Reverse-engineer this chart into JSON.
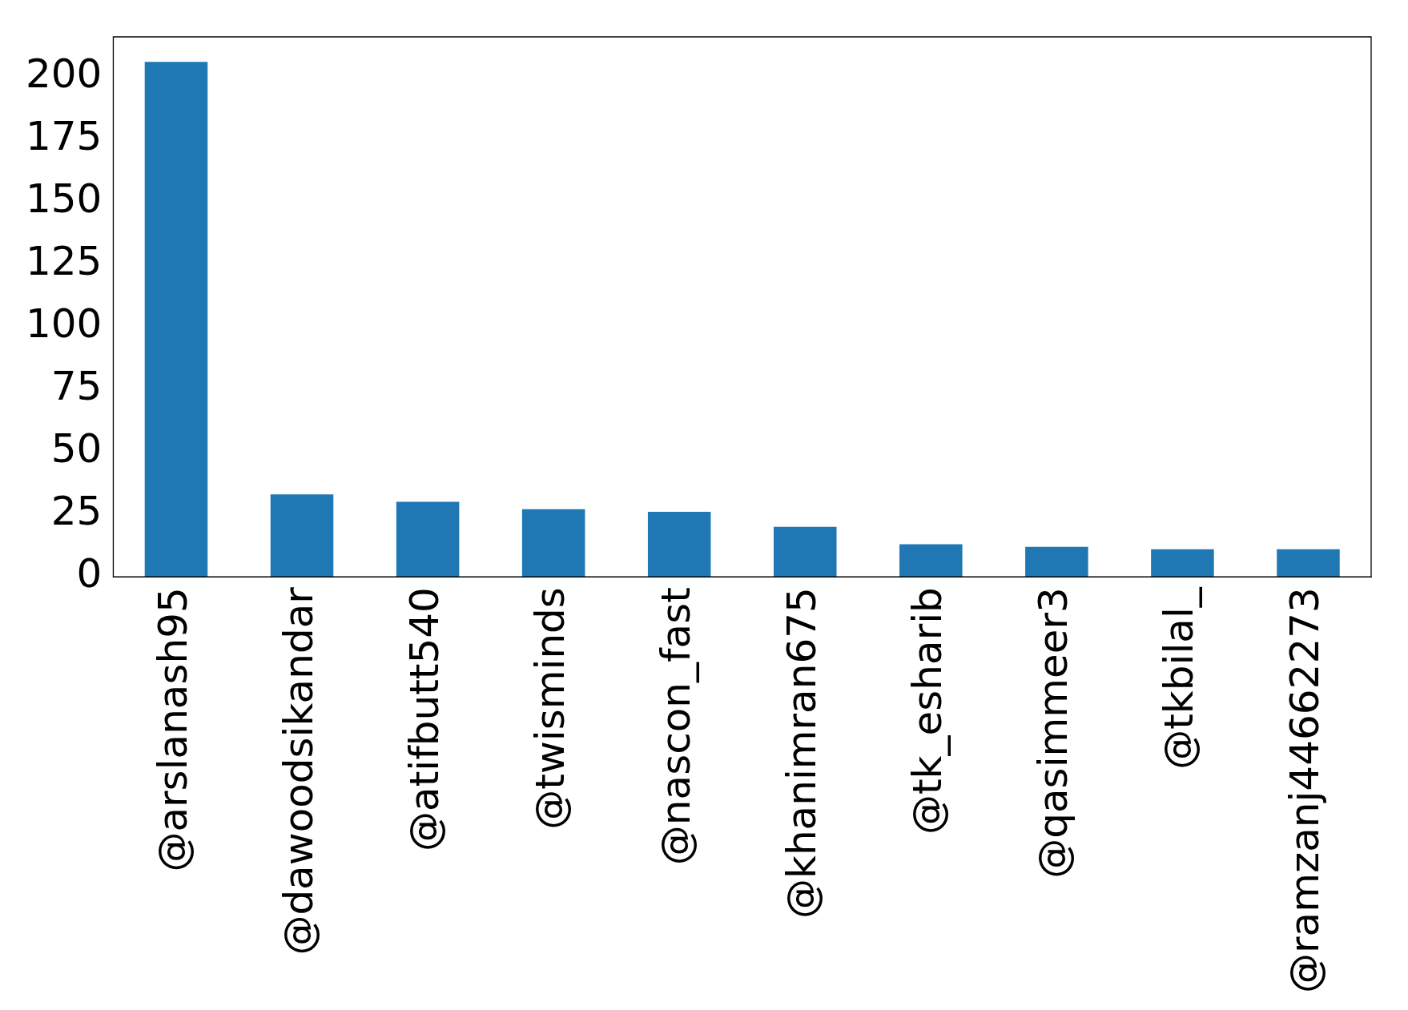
{
  "chart_data": {
    "type": "bar",
    "categories": [
      "@arslanash95",
      "@dawoodsikandar",
      "@atifbutt540",
      "@twisminds",
      "@nascon_fast",
      "@khanimran675",
      "@tk_esharib",
      "@qasimmeer3",
      "@tkbilal_",
      "@ramzanj44662273"
    ],
    "values": [
      206,
      33,
      30,
      27,
      26,
      20,
      13,
      12,
      11,
      11
    ],
    "color": "#1f77b4",
    "ylim": [
      0,
      216
    ],
    "yticks": [
      0,
      25,
      50,
      75,
      100,
      125,
      150,
      175,
      200
    ],
    "grid": false,
    "legend": false
  }
}
